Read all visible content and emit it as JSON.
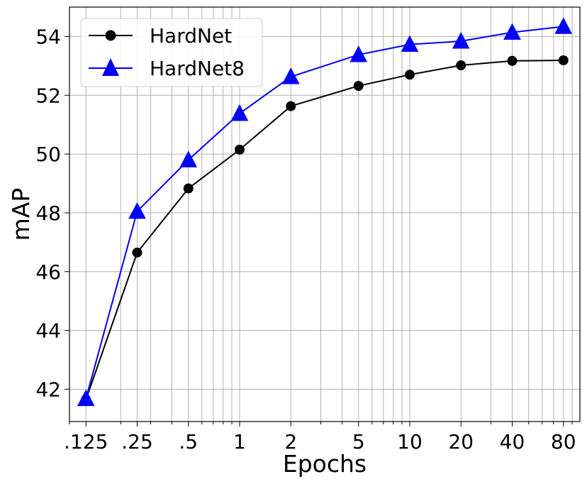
{
  "chart_data": {
    "type": "line",
    "xlabel": "Epochs",
    "ylabel": "mAP",
    "x_scale": "log",
    "xlim": [
      0.1,
      100
    ],
    "ylim": [
      40.9,
      55.0
    ],
    "x": [
      0.125,
      0.25,
      0.5,
      1,
      2,
      5,
      10,
      20,
      40,
      80
    ],
    "x_tick_labels": [
      ".125",
      ".25",
      ".5",
      "1",
      "2",
      "5",
      "10",
      "20",
      "40",
      "80"
    ],
    "y_ticks": [
      42,
      44,
      46,
      48,
      50,
      52,
      54
    ],
    "grid": true,
    "legend_position": "top-left",
    "series": [
      {
        "name": "HardNet",
        "color": "#000000",
        "marker": "circle",
        "values": [
          41.65,
          46.65,
          48.83,
          50.15,
          51.63,
          52.32,
          52.7,
          53.02,
          53.17,
          53.19
        ]
      },
      {
        "name": "HardNet8",
        "color": "#0000ff",
        "marker": "triangle",
        "values": [
          41.68,
          48.05,
          49.8,
          51.38,
          52.63,
          53.38,
          53.73,
          53.84,
          54.14,
          54.34
        ]
      }
    ]
  }
}
